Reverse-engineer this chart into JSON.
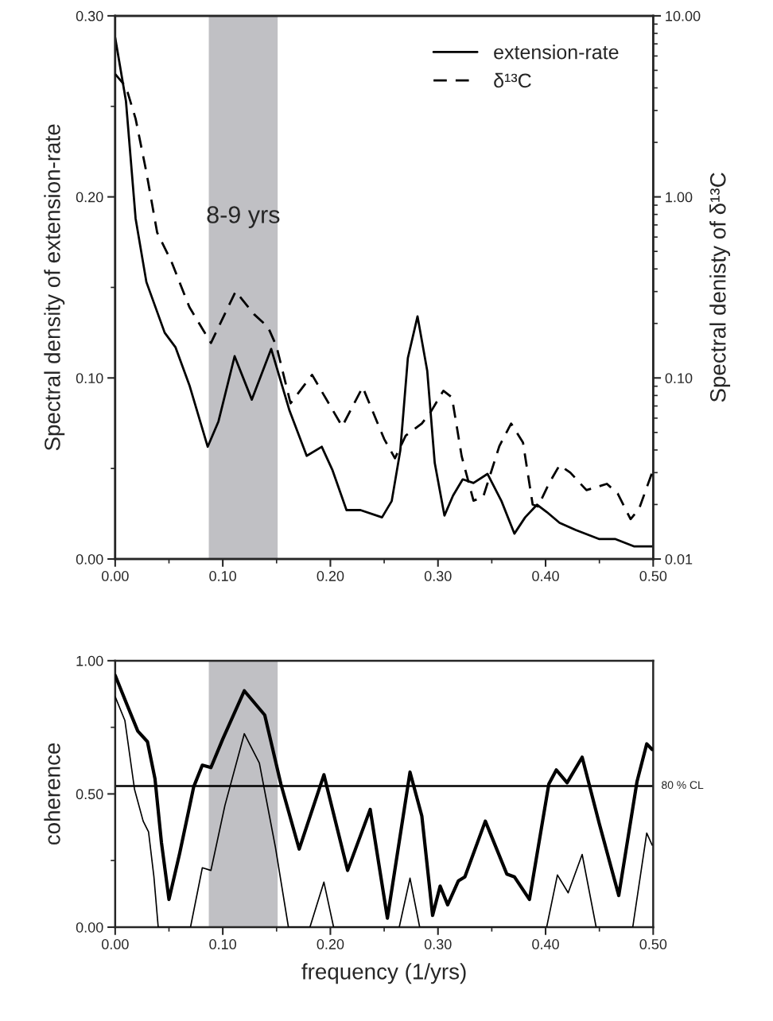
{
  "chart_data": [
    {
      "type": "line",
      "ylabel": "Spectral density of extension-rate",
      "y2label": "Spectral denisty of δ¹³C",
      "xlim": [
        0,
        0.5
      ],
      "ylim": [
        0,
        0.3
      ],
      "y2lim": [
        0.01,
        10
      ],
      "log": "y2",
      "legend": "top right",
      "grid": false,
      "xticks": [
        {
          "value": 0,
          "label": "0.00"
        },
        {
          "value": 0.05,
          "label": null
        },
        {
          "value": 0.1,
          "label": "0.10"
        },
        {
          "value": 0.15,
          "label": null
        },
        {
          "value": 0.2,
          "label": "0.20"
        },
        {
          "value": 0.25,
          "label": null
        },
        {
          "value": 0.3,
          "label": "0.30"
        },
        {
          "value": 0.35,
          "label": null
        },
        {
          "value": 0.4,
          "label": "0.40"
        },
        {
          "value": 0.45,
          "label": null
        },
        {
          "value": 0.5,
          "label": "0.50"
        }
      ],
      "yticks": [
        {
          "value": 0,
          "label": "0.00"
        },
        {
          "value": 0.05,
          "label": null
        },
        {
          "value": 0.1,
          "label": "0.10"
        },
        {
          "value": 0.15,
          "label": null
        },
        {
          "value": 0.2,
          "label": "0.20"
        },
        {
          "value": 0.25,
          "label": null
        },
        {
          "value": 0.3,
          "label": "0.30"
        }
      ],
      "y2ticks": [
        {
          "value": 0.01,
          "label": "0.01"
        },
        {
          "value": 0.02,
          "label": null
        },
        {
          "value": 0.03,
          "label": null
        },
        {
          "value": 0.04,
          "label": null
        },
        {
          "value": 0.05,
          "label": null
        },
        {
          "value": 0.06,
          "label": null
        },
        {
          "value": 0.07,
          "label": null
        },
        {
          "value": 0.08,
          "label": null
        },
        {
          "value": 0.09,
          "label": null
        },
        {
          "value": 0.1,
          "label": "0.10"
        },
        {
          "value": 0.2,
          "label": null
        },
        {
          "value": 0.3,
          "label": null
        },
        {
          "value": 0.4,
          "label": null
        },
        {
          "value": 0.5,
          "label": null
        },
        {
          "value": 0.6,
          "label": null
        },
        {
          "value": 0.7,
          "label": null
        },
        {
          "value": 0.8,
          "label": null
        },
        {
          "value": 0.9,
          "label": null
        },
        {
          "value": 1,
          "label": "1.00"
        },
        {
          "value": 2,
          "label": null
        },
        {
          "value": 3,
          "label": null
        },
        {
          "value": 4,
          "label": null
        },
        {
          "value": 5,
          "label": null
        },
        {
          "value": 6,
          "label": null
        },
        {
          "value": 7,
          "label": null
        },
        {
          "value": 8,
          "label": null
        },
        {
          "value": 9,
          "label": null
        },
        {
          "value": 10,
          "label": "10.00"
        }
      ],
      "bands": [
        {
          "axis": "x",
          "from": 0.087,
          "to": 0.151,
          "label": "8-9 yrs",
          "color": "#c0c0c4"
        }
      ],
      "series": [
        {
          "name": "extension-rate",
          "color": "#000000",
          "line_style": "solid",
          "x": [
            0,
            0.01,
            0.019,
            0.029,
            0.046,
            0.056,
            0.069,
            0.086,
            0.096,
            0.111,
            0.127,
            0.145,
            0.162,
            0.178,
            0.192,
            0.202,
            0.215,
            0.228,
            0.248,
            0.257,
            0.265,
            0.272,
            0.281,
            0.29,
            0.297,
            0.306,
            0.314,
            0.323,
            0.333,
            0.346,
            0.359,
            0.371,
            0.381,
            0.392,
            0.401,
            0.413,
            0.428,
            0.45,
            0.465,
            0.482,
            0.499
          ],
          "values": [
            0.288,
            0.253,
            0.188,
            0.153,
            0.125,
            0.117,
            0.096,
            0.062,
            0.076,
            0.112,
            0.088,
            0.116,
            0.082,
            0.057,
            0.062,
            0.049,
            0.027,
            0.027,
            0.023,
            0.032,
            0.06,
            0.111,
            0.134,
            0.104,
            0.053,
            0.024,
            0.035,
            0.044,
            0.042,
            0.047,
            0.032,
            0.014,
            0.023,
            0.03,
            0.026,
            0.02,
            0.016,
            0.011,
            0.011,
            0.007,
            0.007
          ]
        },
        {
          "name": "δ¹³C",
          "color": "#000000",
          "line_style": "dashed",
          "axis": "y2",
          "x": [
            0,
            0.01,
            0.019,
            0.029,
            0.039,
            0.052,
            0.069,
            0.089,
            0.112,
            0.129,
            0.142,
            0.15,
            0.163,
            0.183,
            0.211,
            0.23,
            0.25,
            0.26,
            0.27,
            0.285,
            0.294,
            0.305,
            0.313,
            0.322,
            0.333,
            0.342,
            0.357,
            0.368,
            0.379,
            0.388,
            0.393,
            0.403,
            0.413,
            0.423,
            0.438,
            0.457,
            0.467,
            0.479,
            0.487,
            0.499
          ],
          "values": [
            4.77,
            4.06,
            2.7,
            1.37,
            0.636,
            0.443,
            0.246,
            0.156,
            0.301,
            0.225,
            0.191,
            0.149,
            0.0724,
            0.104,
            0.054,
            0.089,
            0.046,
            0.036,
            0.048,
            0.056,
            0.066,
            0.085,
            0.078,
            0.037,
            0.021,
            0.022,
            0.042,
            0.056,
            0.044,
            0.02,
            0.0195,
            0.026,
            0.033,
            0.03,
            0.024,
            0.026,
            0.023,
            0.0166,
            0.019,
            0.03
          ]
        }
      ]
    },
    {
      "type": "line",
      "xlabel": "frequency (1/yrs)",
      "ylabel": "coherence",
      "xlim": [
        0,
        0.5
      ],
      "ylim": [
        0,
        1
      ],
      "grid": false,
      "xticks": [
        {
          "value": 0,
          "label": "0.00"
        },
        {
          "value": 0.05,
          "label": null
        },
        {
          "value": 0.1,
          "label": "0.10"
        },
        {
          "value": 0.15,
          "label": null
        },
        {
          "value": 0.2,
          "label": "0.20"
        },
        {
          "value": 0.25,
          "label": null
        },
        {
          "value": 0.3,
          "label": "0.30"
        },
        {
          "value": 0.35,
          "label": null
        },
        {
          "value": 0.4,
          "label": "0.40"
        },
        {
          "value": 0.45,
          "label": null
        },
        {
          "value": 0.5,
          "label": "0.50"
        }
      ],
      "yticks": [
        {
          "value": 0,
          "label": "0.00"
        },
        {
          "value": 0.25,
          "label": null
        },
        {
          "value": 0.5,
          "label": "0.50"
        },
        {
          "value": 0.75,
          "label": null
        },
        {
          "value": 1,
          "label": "1.00"
        }
      ],
      "bands": [
        {
          "axis": "x",
          "from": 0.087,
          "to": 0.151,
          "color": "#c0c0c4"
        }
      ],
      "ref_lines": [
        {
          "axis": "y",
          "value": 0.53,
          "label": "80 % CL",
          "color": "#000000"
        }
      ],
      "series": [
        {
          "color": "#000000",
          "x": [
            0,
            0.011,
            0.021,
            0.03,
            0.037,
            0.043,
            0.05,
            0.06,
            0.073,
            0.081,
            0.089,
            0.1,
            0.12,
            0.139,
            0.154,
            0.171,
            0.194,
            0.216,
            0.237,
            0.253,
            0.274,
            0.285,
            0.295,
            0.302,
            0.309,
            0.319,
            0.325,
            0.344,
            0.364,
            0.371,
            0.385,
            0.403,
            0.41,
            0.42,
            0.434,
            0.45,
            0.468,
            0.485,
            0.494,
            0.499
          ],
          "values": [
            0.945,
            0.835,
            0.736,
            0.696,
            0.557,
            0.318,
            0.104,
            0.278,
            0.527,
            0.608,
            0.599,
            0.706,
            0.887,
            0.796,
            0.537,
            0.293,
            0.572,
            0.213,
            0.442,
            0.034,
            0.582,
            0.417,
            0.044,
            0.154,
            0.084,
            0.174,
            0.189,
            0.398,
            0.199,
            0.189,
            0.104,
            0.537,
            0.59,
            0.542,
            0.638,
            0.387,
            0.119,
            0.547,
            0.688,
            0.667
          ]
        },
        {
          "color": "#000000",
          "x": [
            0,
            0.009,
            0.018,
            0.026,
            0.031,
            0.036,
            0.04,
            0.07,
            0.081,
            0.089,
            0.102,
            0.12,
            0.134,
            0.149,
            0.161,
            0.181,
            0.194,
            0.203,
            0.264,
            0.274,
            0.283,
            0.401,
            0.411,
            0.421,
            0.434,
            0.447,
            0.481,
            0.494,
            0.499
          ],
          "values": [
            0.865,
            0.776,
            0.517,
            0.398,
            0.358,
            0.189,
            0,
            0,
            0.223,
            0.213,
            0.457,
            0.726,
            0.616,
            0.298,
            0,
            0,
            0.169,
            0,
            0,
            0.184,
            0,
            0,
            0.196,
            0.129,
            0.273,
            0,
            0,
            0.353,
            0.308
          ]
        }
      ]
    }
  ]
}
